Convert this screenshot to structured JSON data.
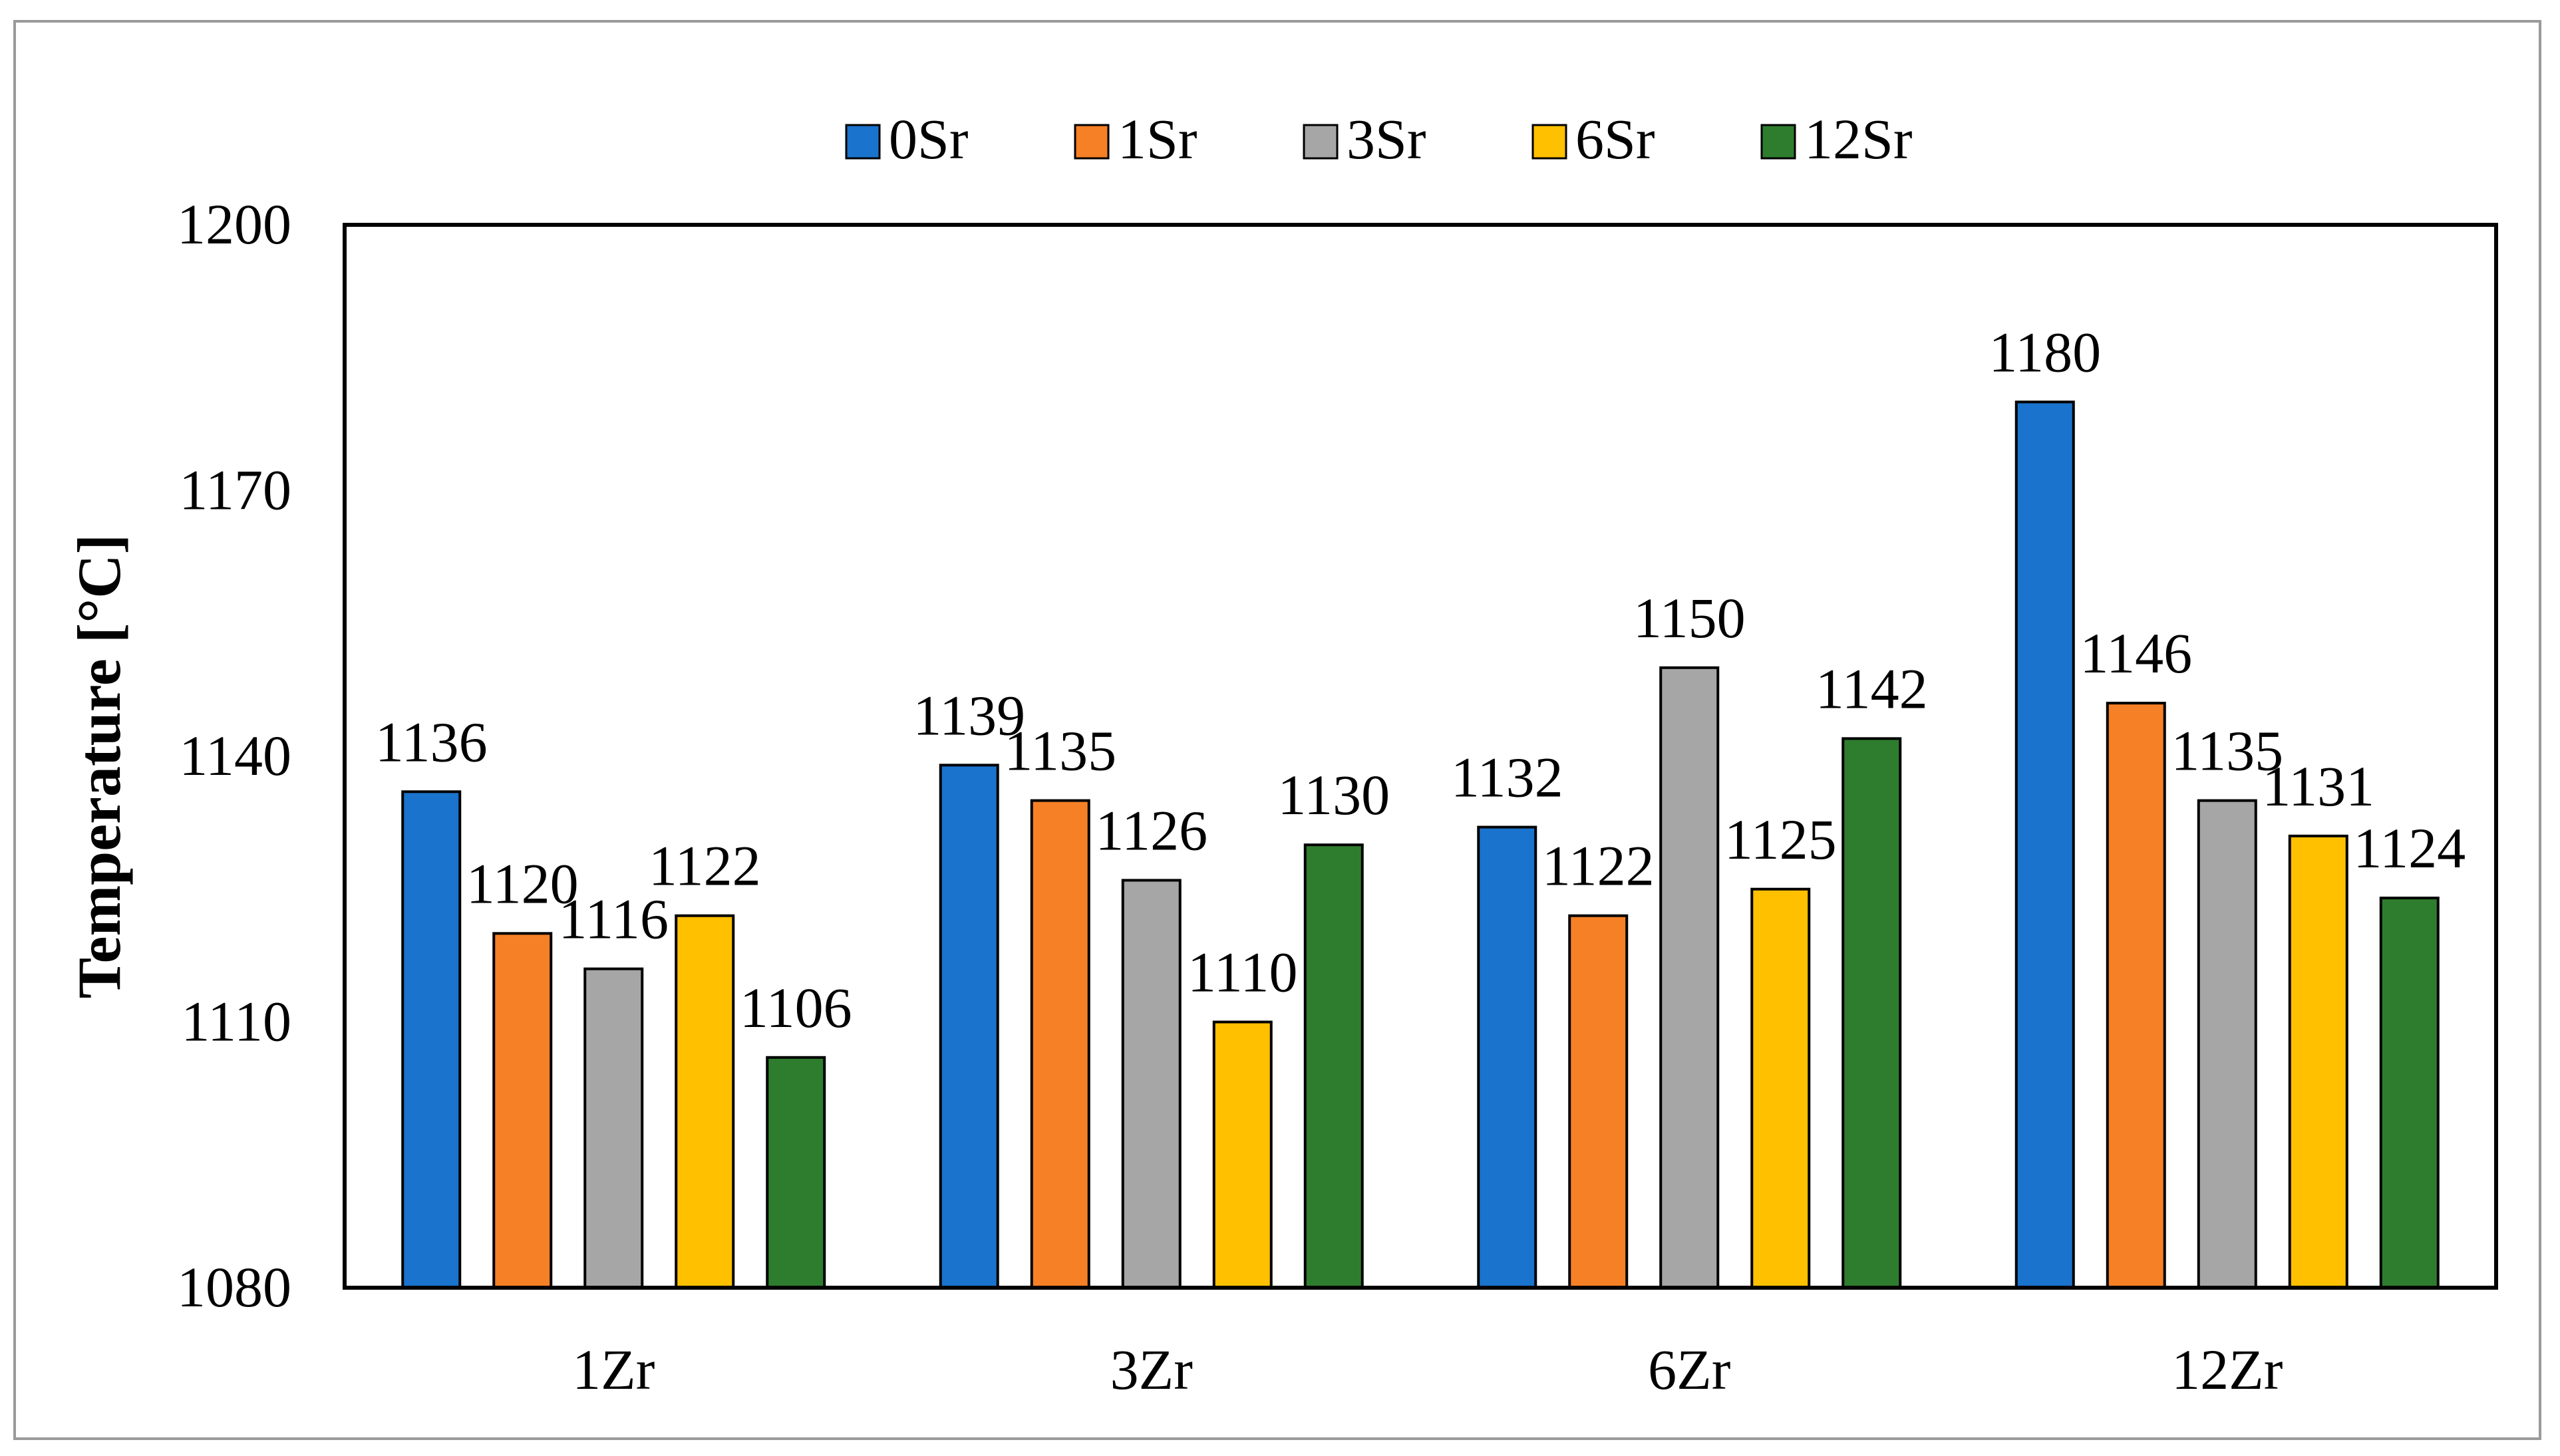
{
  "chart_data": {
    "type": "bar",
    "title": "",
    "xlabel": "",
    "ylabel": "Temperature [°C]",
    "ylim": [
      1080,
      1200
    ],
    "yticks": [
      1080,
      1110,
      1140,
      1170,
      1200
    ],
    "categories": [
      "1Zr",
      "3Zr",
      "6Zr",
      "12Zr"
    ],
    "legend_position": "top",
    "grid": false,
    "series": [
      {
        "name": "0Sr",
        "color": "#1a73cc",
        "values": [
          1136,
          1139,
          1132,
          1180
        ]
      },
      {
        "name": "1Sr",
        "color": "#f58025",
        "values": [
          1120,
          1135,
          1122,
          1146
        ]
      },
      {
        "name": "3Sr",
        "color": "#a6a6a6",
        "values": [
          1116,
          1126,
          1150,
          1135
        ]
      },
      {
        "name": "6Sr",
        "color": "#ffc000",
        "values": [
          1122,
          1110,
          1125,
          1131
        ]
      },
      {
        "name": "12Sr",
        "color": "#2e7d2e",
        "values": [
          1106,
          1130,
          1142,
          1124
        ]
      }
    ]
  }
}
